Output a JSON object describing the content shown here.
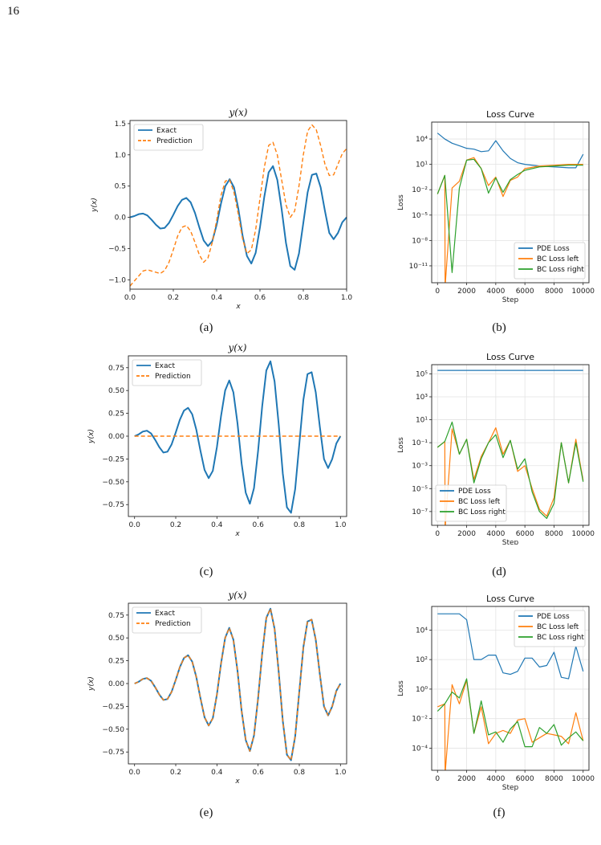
{
  "page_number": "16",
  "captions": [
    "(a)",
    "(b)",
    "(c)",
    "(d)",
    "(e)",
    "(f)"
  ],
  "colors": {
    "exact": "#1f77b4",
    "prediction": "#ff7f0e",
    "pde": "#1f77b4",
    "bc_left": "#ff7f0e",
    "bc_right": "#2ca02c"
  },
  "chart_data": [
    {
      "id": "a",
      "type": "line",
      "title": "y(x)",
      "xlabel": "x",
      "ylabel": "y(x)",
      "xlim": [
        0,
        1
      ],
      "ylim": [
        -1.15,
        1.55
      ],
      "grid": false,
      "legend": "top-left",
      "xticks": [
        0.0,
        0.2,
        0.4,
        0.6,
        0.8,
        1.0
      ],
      "xticklabels": [
        "0.0",
        "0.2",
        "0.4",
        "0.6",
        "0.8",
        "1.0"
      ],
      "yticks": [
        -1.0,
        -0.5,
        0.0,
        0.5,
        1.0,
        1.5
      ],
      "yticklabels": [
        "−1.0",
        "−0.5",
        "0.0",
        "0.5",
        "1.0",
        "1.5"
      ],
      "series": [
        {
          "name": "Exact",
          "style": "solid",
          "color": "#1f77b4",
          "x": [
            0,
            0.02,
            0.04,
            0.06,
            0.08,
            0.1,
            0.12,
            0.14,
            0.16,
            0.18,
            0.2,
            0.22,
            0.24,
            0.26,
            0.28,
            0.3,
            0.32,
            0.34,
            0.36,
            0.38,
            0.4,
            0.42,
            0.44,
            0.46,
            0.48,
            0.5,
            0.52,
            0.54,
            0.56,
            0.58,
            0.6,
            0.62,
            0.64,
            0.66,
            0.68,
            0.7,
            0.72,
            0.74,
            0.76,
            0.78,
            0.8,
            0.82,
            0.84,
            0.86,
            0.88,
            0.9,
            0.92,
            0.94,
            0.96,
            0.98,
            1.0
          ],
          "y": [
            0,
            0.02,
            0.05,
            0.06,
            0.03,
            -0.04,
            -0.12,
            -0.18,
            -0.17,
            -0.09,
            0.04,
            0.18,
            0.28,
            0.31,
            0.24,
            0.07,
            -0.16,
            -0.37,
            -0.46,
            -0.38,
            -0.12,
            0.22,
            0.5,
            0.61,
            0.48,
            0.14,
            -0.3,
            -0.62,
            -0.74,
            -0.57,
            -0.16,
            0.33,
            0.72,
            0.82,
            0.6,
            0.13,
            -0.41,
            -0.78,
            -0.84,
            -0.58,
            -0.09,
            0.4,
            0.68,
            0.7,
            0.48,
            0.1,
            -0.25,
            -0.35,
            -0.25,
            -0.08,
            0
          ]
        },
        {
          "name": "Prediction",
          "style": "dashed",
          "color": "#ff7f0e",
          "x": [
            0,
            0.02,
            0.04,
            0.06,
            0.08,
            0.1,
            0.12,
            0.14,
            0.16,
            0.18,
            0.2,
            0.22,
            0.24,
            0.26,
            0.28,
            0.3,
            0.32,
            0.34,
            0.36,
            0.38,
            0.4,
            0.42,
            0.44,
            0.46,
            0.48,
            0.5,
            0.52,
            0.54,
            0.56,
            0.58,
            0.6,
            0.62,
            0.64,
            0.66,
            0.68,
            0.7,
            0.72,
            0.74,
            0.76,
            0.78,
            0.8,
            0.82,
            0.84,
            0.86,
            0.88,
            0.9,
            0.92,
            0.94,
            0.96,
            0.98,
            1.0
          ],
          "y": [
            -1.1,
            -1.02,
            -0.94,
            -0.86,
            -0.84,
            -0.86,
            -0.88,
            -0.9,
            -0.85,
            -0.72,
            -0.52,
            -0.3,
            -0.16,
            -0.13,
            -0.22,
            -0.4,
            -0.6,
            -0.72,
            -0.65,
            -0.4,
            -0.05,
            0.35,
            0.58,
            0.6,
            0.4,
            0.05,
            -0.35,
            -0.58,
            -0.52,
            -0.2,
            0.3,
            0.8,
            1.15,
            1.2,
            1.0,
            0.6,
            0.2,
            0.0,
            0.1,
            0.5,
            1.0,
            1.38,
            1.48,
            1.4,
            1.15,
            0.85,
            0.67,
            0.68,
            0.85,
            1.02,
            1.1
          ]
        }
      ]
    },
    {
      "id": "b",
      "type": "line",
      "title": "Loss Curve",
      "xlabel": "Step",
      "ylabel": "Loss",
      "xlim": [
        -400,
        10400
      ],
      "ylog": true,
      "ylim_exp": [
        -13,
        6
      ],
      "grid": true,
      "legend": "bottom-right",
      "xticks": [
        0,
        2000,
        4000,
        6000,
        8000,
        10000
      ],
      "xticklabels": [
        "0",
        "2000",
        "4000",
        "6000",
        "8000",
        "10000"
      ],
      "yticks_exp": [
        -11,
        -8,
        -5,
        -2,
        1,
        4
      ],
      "yticklabels": [
        "10⁻¹¹",
        "10⁻⁸",
        "10⁻⁵",
        "10⁻²",
        "10¹",
        "10⁴"
      ],
      "series": [
        {
          "name": "PDE Loss",
          "color": "#1f77b4",
          "x": [
            0,
            500,
            1000,
            1500,
            2000,
            2500,
            3000,
            3500,
            4000,
            4500,
            5000,
            5500,
            6000,
            7000,
            8000,
            9000,
            9500,
            10000
          ],
          "log10": [
            4.7,
            4.0,
            3.5,
            3.2,
            2.9,
            2.8,
            2.5,
            2.6,
            3.8,
            2.6,
            1.7,
            1.2,
            1.0,
            0.8,
            0.7,
            0.6,
            0.6,
            2.2
          ]
        },
        {
          "name": "BC Loss left",
          "color": "#ff7f0e",
          "x": [
            0,
            500,
            520,
            540,
            1000,
            1500,
            2000,
            2500,
            3000,
            3500,
            4000,
            4500,
            5000,
            5500,
            6000,
            7000,
            8000,
            9000,
            10000
          ],
          "log10": [
            -2.5,
            -0.3,
            -13.5,
            -13.5,
            -1.8,
            -1.0,
            1.5,
            1.8,
            0.5,
            -1.5,
            -0.5,
            -2.8,
            -0.9,
            -0.5,
            0.5,
            0.8,
            0.9,
            1.0,
            1.0
          ]
        },
        {
          "name": "BC Loss right",
          "color": "#2ca02c",
          "x": [
            0,
            500,
            1000,
            1500,
            2000,
            2500,
            3000,
            3500,
            4000,
            4500,
            5000,
            5500,
            6000,
            7000,
            8000,
            9000,
            10000
          ],
          "log10": [
            -2.5,
            -0.3,
            -11.8,
            -1.8,
            1.5,
            1.6,
            0.5,
            -2.4,
            -0.6,
            -2.3,
            -0.8,
            -0.2,
            0.3,
            0.7,
            0.8,
            0.9,
            0.9
          ]
        }
      ]
    },
    {
      "id": "c",
      "type": "line",
      "title": "y(x)",
      "xlabel": "x",
      "ylabel": "y(x)",
      "xlim": [
        -0.03,
        1.03
      ],
      "ylim": [
        -0.88,
        0.88
      ],
      "grid": false,
      "legend": "top-left",
      "xticks": [
        0.0,
        0.2,
        0.4,
        0.6,
        0.8,
        1.0
      ],
      "xticklabels": [
        "0.0",
        "0.2",
        "0.4",
        "0.6",
        "0.8",
        "1.0"
      ],
      "yticks": [
        -0.75,
        -0.5,
        -0.25,
        0.0,
        0.25,
        0.5,
        0.75
      ],
      "yticklabels": [
        "−0.75",
        "−0.50",
        "−0.25",
        "0.00",
        "0.25",
        "0.50",
        "0.75"
      ],
      "series": [
        {
          "name": "Exact",
          "style": "solid",
          "color": "#1f77b4",
          "x_ref": "a0",
          "y_ref": "a0"
        },
        {
          "name": "Prediction",
          "style": "dashed",
          "color": "#ff7f0e",
          "x": [
            0,
            1
          ],
          "y": [
            0,
            0
          ]
        }
      ]
    },
    {
      "id": "d",
      "type": "line",
      "title": "Loss Curve",
      "xlabel": "Step",
      "ylabel": "Loss",
      "xlim": [
        -400,
        10400
      ],
      "ylog": true,
      "ylim_exp": [
        -8.2,
        5.8
      ],
      "grid": true,
      "legend": "bottom-left",
      "xticks": [
        0,
        2000,
        4000,
        6000,
        8000,
        10000
      ],
      "xticklabels": [
        "0",
        "2000",
        "4000",
        "6000",
        "8000",
        "10000"
      ],
      "yticks_exp": [
        -7,
        -5,
        -3,
        -1,
        1,
        3,
        5
      ],
      "yticklabels": [
        "10⁻⁷",
        "10⁻⁵",
        "10⁻³",
        "10⁻¹",
        "10¹",
        "10³",
        "10⁵"
      ],
      "series": [
        {
          "name": "PDE Loss",
          "color": "#1f77b4",
          "x": [
            0,
            10000
          ],
          "log10": [
            5.3,
            5.3
          ]
        },
        {
          "name": "BC Loss left",
          "color": "#ff7f0e",
          "x": [
            0,
            500,
            520,
            540,
            1000,
            1500,
            2000,
            2500,
            3000,
            3500,
            4000,
            4500,
            5000,
            5500,
            6000,
            6500,
            7000,
            7500,
            8000,
            8500,
            9000,
            9500,
            10000
          ],
          "log10": [
            -1.4,
            -0.9,
            -8.5,
            -8.5,
            0.2,
            -2.0,
            -0.7,
            -4.2,
            -2.2,
            -1.0,
            0.3,
            -2.0,
            -0.8,
            -3.5,
            -3.0,
            -5.0,
            -6.8,
            -7.4,
            -5.8,
            -1.0,
            -4.5,
            -0.7,
            -4.3
          ]
        },
        {
          "name": "BC Loss right",
          "color": "#2ca02c",
          "x": [
            0,
            500,
            1000,
            1500,
            2000,
            2500,
            3000,
            3500,
            4000,
            4500,
            5000,
            5500,
            6000,
            6500,
            7000,
            7500,
            8000,
            8500,
            9000,
            9500,
            10000
          ],
          "log10": [
            -1.4,
            -0.9,
            0.8,
            -2.0,
            -0.7,
            -4.5,
            -2.4,
            -1.0,
            -0.3,
            -2.3,
            -0.8,
            -3.3,
            -2.4,
            -5.3,
            -7.0,
            -7.6,
            -6.3,
            -1.0,
            -4.5,
            -1.0,
            -4.4
          ]
        }
      ]
    },
    {
      "id": "e",
      "type": "line",
      "title": "y(x)",
      "xlabel": "x",
      "ylabel": "y(x)",
      "xlim": [
        -0.03,
        1.03
      ],
      "ylim": [
        -0.88,
        0.88
      ],
      "grid": false,
      "legend": "top-left",
      "xticks": [
        0.0,
        0.2,
        0.4,
        0.6,
        0.8,
        1.0
      ],
      "xticklabels": [
        "0.0",
        "0.2",
        "0.4",
        "0.6",
        "0.8",
        "1.0"
      ],
      "yticks": [
        -0.75,
        -0.5,
        -0.25,
        0.0,
        0.25,
        0.5,
        0.75
      ],
      "yticklabels": [
        "−0.75",
        "−0.50",
        "−0.25",
        "0.00",
        "0.25",
        "0.50",
        "0.75"
      ],
      "series": [
        {
          "name": "Exact",
          "style": "solid",
          "color": "#1f77b4",
          "x_ref": "a0",
          "y_ref": "a0"
        },
        {
          "name": "Prediction",
          "style": "dashed",
          "color": "#ff7f0e",
          "x_ref": "a0",
          "y_ref": "a0"
        }
      ]
    },
    {
      "id": "f",
      "type": "line",
      "title": "Loss Curve",
      "xlabel": "Step",
      "ylabel": "Loss",
      "xlim": [
        -400,
        10400
      ],
      "ylog": true,
      "ylim_exp": [
        -5.5,
        5.6
      ],
      "grid": true,
      "legend": "top-right",
      "xticks": [
        0,
        2000,
        4000,
        6000,
        8000,
        10000
      ],
      "xticklabels": [
        "0",
        "2000",
        "4000",
        "6000",
        "8000",
        "10000"
      ],
      "yticks_exp": [
        -4,
        -2,
        0,
        2,
        4
      ],
      "yticklabels": [
        "10⁻⁴",
        "10⁻²",
        "10⁰",
        "10²",
        "10⁴"
      ],
      "series": [
        {
          "name": "PDE Loss",
          "color": "#1f77b4",
          "x": [
            0,
            500,
            1000,
            1500,
            2000,
            2500,
            3000,
            3500,
            4000,
            4500,
            5000,
            5500,
            6000,
            6500,
            7000,
            7500,
            8000,
            8500,
            9000,
            9500,
            10000
          ],
          "log10": [
            5.1,
            5.1,
            5.1,
            5.1,
            4.7,
            2.0,
            2.0,
            2.3,
            2.3,
            1.1,
            1.0,
            1.2,
            2.1,
            2.1,
            1.5,
            1.6,
            2.5,
            0.8,
            0.7,
            2.9,
            1.2
          ]
        },
        {
          "name": "BC Loss left",
          "color": "#ff7f0e",
          "x": [
            0,
            500,
            520,
            540,
            1000,
            1500,
            2000,
            2500,
            3000,
            3500,
            4000,
            4500,
            5000,
            5500,
            6000,
            6500,
            7000,
            7500,
            8000,
            8500,
            9000,
            9500,
            10000
          ],
          "log10": [
            -1.2,
            -1.0,
            -5.6,
            -5.6,
            0.3,
            -1.0,
            0.6,
            -3.0,
            -1.2,
            -3.7,
            -3.0,
            -2.8,
            -3.0,
            -2.1,
            -2.0,
            -3.6,
            -3.3,
            -3.0,
            -3.1,
            -3.2,
            -3.7,
            -1.6,
            -3.5
          ]
        },
        {
          "name": "BC Loss right",
          "color": "#2ca02c",
          "x": [
            0,
            500,
            1000,
            1500,
            2000,
            2500,
            3000,
            3500,
            4000,
            4500,
            5000,
            5500,
            6000,
            6500,
            7000,
            7500,
            8000,
            8500,
            9000,
            9500,
            10000
          ],
          "log10": [
            -1.5,
            -1.0,
            -0.2,
            -0.6,
            0.7,
            -3.0,
            -0.8,
            -3.1,
            -2.9,
            -3.6,
            -2.7,
            -2.2,
            -3.9,
            -3.9,
            -2.6,
            -3.0,
            -2.4,
            -3.8,
            -3.3,
            -2.9,
            -3.5
          ]
        }
      ]
    }
  ]
}
